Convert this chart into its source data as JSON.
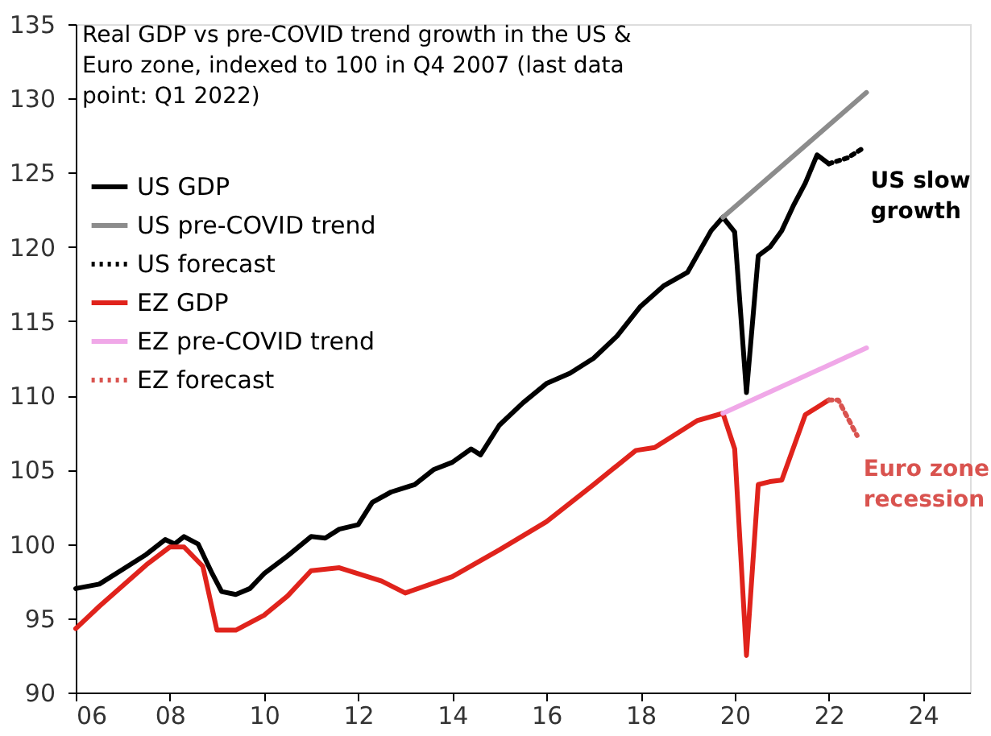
{
  "chart_data": {
    "type": "line",
    "title": "Real GDP vs pre-COVID trend growth in the US & Euro zone, indexed to 100 in Q4 2007 (last data point: Q1 2022)",
    "xlim": [
      2006,
      2025
    ],
    "xticks": [
      {
        "value": 2006,
        "label": "06"
      },
      {
        "value": 2008,
        "label": "08"
      },
      {
        "value": 2010,
        "label": "10"
      },
      {
        "value": 2012,
        "label": "12"
      },
      {
        "value": 2014,
        "label": "14"
      },
      {
        "value": 2016,
        "label": "16"
      },
      {
        "value": 2018,
        "label": "18"
      },
      {
        "value": 2020,
        "label": "20"
      },
      {
        "value": 2022,
        "label": "22"
      },
      {
        "value": 2024,
        "label": "24"
      }
    ],
    "ylim": [
      90,
      135
    ],
    "yticks": [
      90,
      95,
      100,
      105,
      110,
      115,
      120,
      125,
      130,
      135
    ],
    "grid": false,
    "legend": "top left",
    "marker": "none",
    "series": [
      {
        "name": "US GDP",
        "color": "#000000",
        "line_style": "solid",
        "x": [
          2006.0,
          2006.5,
          2007.0,
          2007.5,
          2007.9,
          2008.1,
          2008.3,
          2008.6,
          2008.9,
          2009.1,
          2009.4,
          2009.7,
          2010.0,
          2010.5,
          2011.0,
          2011.3,
          2011.6,
          2012.0,
          2012.3,
          2012.7,
          2013.2,
          2013.6,
          2014.0,
          2014.4,
          2014.6,
          2015.0,
          2015.5,
          2016.0,
          2016.5,
          2017.0,
          2017.5,
          2018.0,
          2018.5,
          2019.0,
          2019.5,
          2019.75,
          2020.0,
          2020.25,
          2020.5,
          2020.75,
          2021.0,
          2021.25,
          2021.5,
          2021.75,
          2022.0
        ],
        "values": [
          97.0,
          97.3,
          98.3,
          99.3,
          100.3,
          100.0,
          100.5,
          100.0,
          98.0,
          96.8,
          96.6,
          97.0,
          98.0,
          99.2,
          100.5,
          100.4,
          101.0,
          101.3,
          102.8,
          103.5,
          104.0,
          105.0,
          105.5,
          106.4,
          106.0,
          108.0,
          109.5,
          110.8,
          111.5,
          112.5,
          114.0,
          116.0,
          117.4,
          118.3,
          121.1,
          122.0,
          121.0,
          110.2,
          119.4,
          120.0,
          121.1,
          122.8,
          124.3,
          126.2,
          125.6
        ]
      },
      {
        "name": "US pre-COVID trend",
        "color": "#8c8c8c",
        "line_style": "solid",
        "x": [
          2019.75,
          2022.8
        ],
        "values": [
          122.0,
          130.4
        ]
      },
      {
        "name": "US forecast",
        "color": "#000000",
        "line_style": "dotted",
        "x": [
          2022.0,
          2022.4,
          2022.75
        ],
        "values": [
          125.6,
          126.0,
          126.7
        ]
      },
      {
        "name": "EZ GDP",
        "color": "#e0231c",
        "line_style": "solid",
        "x": [
          2006.0,
          2006.5,
          2007.0,
          2007.5,
          2008.0,
          2008.3,
          2008.7,
          2009.0,
          2009.4,
          2010.0,
          2010.5,
          2011.0,
          2011.6,
          2012.5,
          2013.0,
          2014.0,
          2015.0,
          2016.0,
          2017.0,
          2017.9,
          2018.3,
          2018.7,
          2019.2,
          2019.75,
          2020.0,
          2020.25,
          2020.5,
          2020.75,
          2021.0,
          2021.5,
          2022.0
        ],
        "values": [
          94.3,
          95.8,
          97.2,
          98.6,
          99.8,
          99.8,
          98.5,
          94.2,
          94.2,
          95.2,
          96.5,
          98.2,
          98.4,
          97.5,
          96.7,
          97.8,
          99.6,
          101.5,
          104.0,
          106.3,
          106.5,
          107.3,
          108.3,
          108.8,
          106.4,
          92.5,
          104.0,
          104.2,
          104.3,
          108.7,
          109.7
        ]
      },
      {
        "name": "EZ pre-COVID trend",
        "color": "#f0a8e8",
        "line_style": "solid",
        "x": [
          2019.75,
          2022.8
        ],
        "values": [
          108.8,
          113.2
        ]
      },
      {
        "name": "EZ forecast",
        "color": "#d9534f",
        "line_style": "dotted",
        "x": [
          2022.0,
          2022.2,
          2022.6
        ],
        "values": [
          109.7,
          109.7,
          107.3
        ]
      }
    ],
    "annotations": [
      "US slow growth",
      "Euro zone recession"
    ]
  }
}
